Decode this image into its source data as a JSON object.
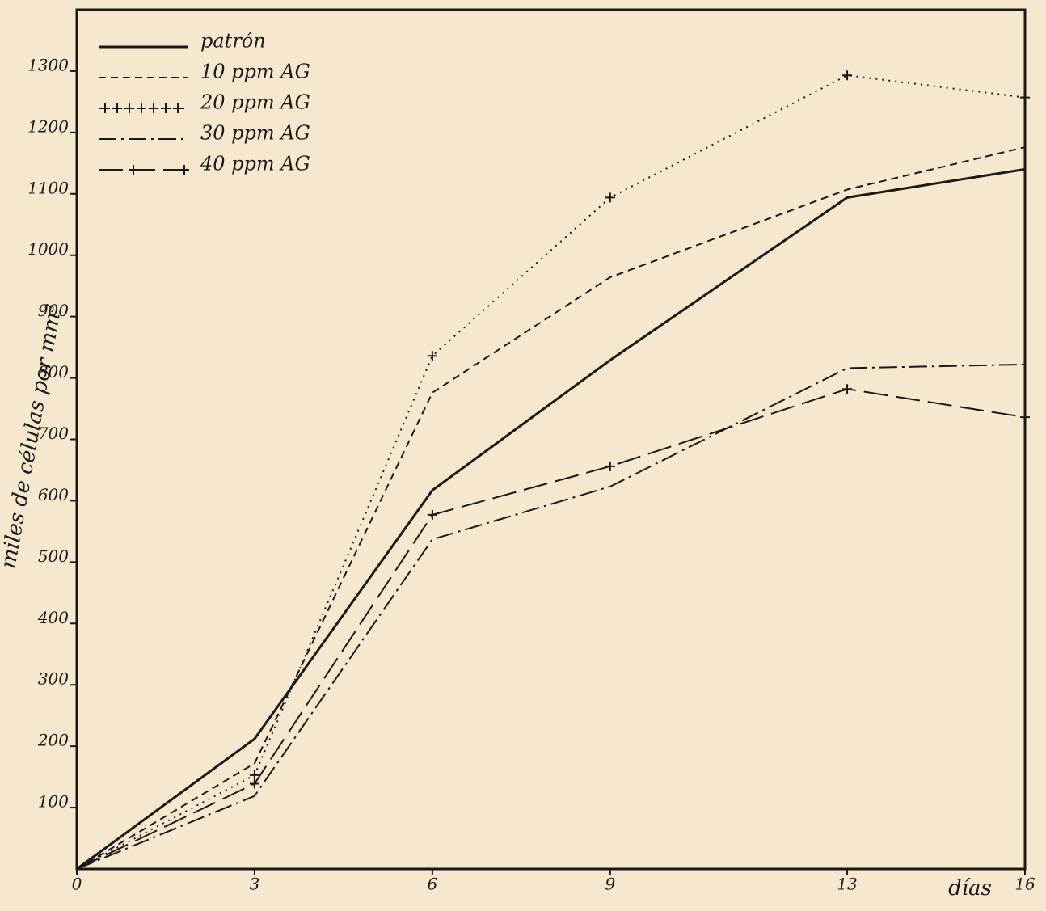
{
  "chart_data": {
    "type": "line",
    "x_label": "días",
    "y_label": "miles de células por mm³",
    "x": [
      0,
      3,
      6,
      9,
      13,
      16
    ],
    "series": [
      {
        "name": "patrón",
        "color": "#1a1a1a",
        "dash": "solid",
        "values": [
          0,
          212,
          617,
          829,
          1094,
          1140
        ]
      },
      {
        "name": "10 ppm AG",
        "color": "#1a1a1a",
        "dash": "dashed",
        "values": [
          0,
          172,
          776,
          964,
          1107,
          1176
        ]
      },
      {
        "name": "20 ppm AG",
        "color": "#1a1a1a",
        "dash": "crosses",
        "values": [
          0,
          153,
          836,
          1094,
          1293,
          1257
        ]
      },
      {
        "name": "30 ppm AG",
        "color": "#1a1a1a",
        "dash": "dashdot",
        "values": [
          0,
          119,
          537,
          623,
          816,
          822
        ]
      },
      {
        "name": "40 ppm AG",
        "color": "#1a1a1a",
        "dash": "dashcross",
        "values": [
          0,
          139,
          577,
          656,
          782,
          736
        ]
      }
    ],
    "xlim": [
      0,
      16
    ],
    "xticks": [
      0,
      3,
      6,
      9,
      13,
      16
    ],
    "ylim": [
      0,
      1400
    ],
    "yticks": [
      100,
      200,
      300,
      400,
      500,
      600,
      700,
      800,
      900,
      1000,
      1100,
      1200,
      1300
    ],
    "legend": "upper left"
  }
}
